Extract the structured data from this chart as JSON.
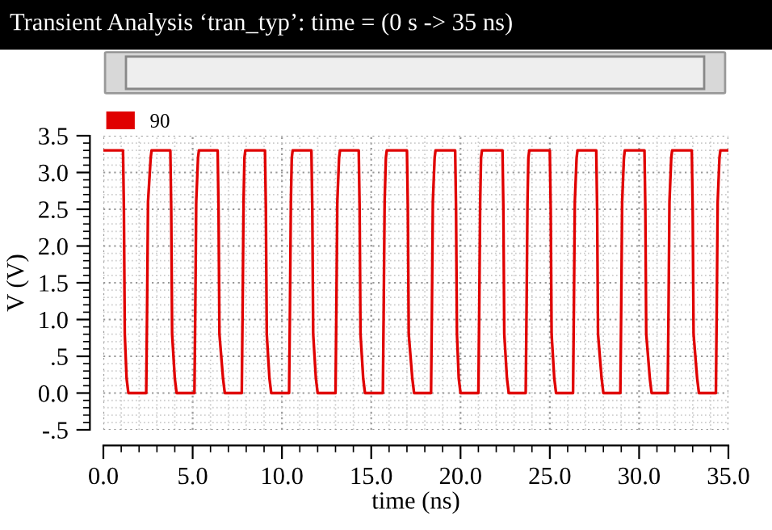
{
  "chart_data": {
    "type": "line",
    "title": "Transient Analysis ‘tran_typ’: time = (0 s -> 35 ns)",
    "xlabel": "time (ns)",
    "ylabel": "V (V)",
    "series": [
      {
        "name": "90",
        "color": "#e00000",
        "x": [
          0,
          1.1,
          1.15,
          1.2,
          1.3,
          1.4,
          2.4,
          2.45,
          2.5,
          2.65,
          2.7,
          3.75,
          3.8,
          3.85,
          4.0,
          4.1,
          5.1,
          5.15,
          5.2,
          5.3,
          5.35,
          6.4,
          6.45,
          6.5,
          6.7,
          6.8,
          7.75,
          7.8,
          7.85,
          7.9,
          7.95,
          9.05,
          9.1,
          9.15,
          9.3,
          9.4,
          10.4,
          10.45,
          10.5,
          10.55,
          10.6,
          11.65,
          11.7,
          11.75,
          11.9,
          12.0,
          13.0,
          13.05,
          13.1,
          13.2,
          13.25,
          14.3,
          14.35,
          14.4,
          14.55,
          14.65,
          15.65,
          15.7,
          15.75,
          15.82,
          15.87,
          17.0,
          17.05,
          17.1,
          17.3,
          17.4,
          18.35,
          18.4,
          18.45,
          18.55,
          18.6,
          19.7,
          19.75,
          19.8,
          19.9,
          20.0,
          21.0,
          21.05,
          21.1,
          21.15,
          21.2,
          22.35,
          22.4,
          22.45,
          22.6,
          22.7,
          23.65,
          23.7,
          23.75,
          23.8,
          23.85,
          25.0,
          25.05,
          25.1,
          25.25,
          25.35,
          26.3,
          26.35,
          26.4,
          26.5,
          26.55,
          27.6,
          27.65,
          27.7,
          27.9,
          28.0,
          28.95,
          29.0,
          29.05,
          29.15,
          29.2,
          30.3,
          30.35,
          30.4,
          30.6,
          30.7,
          31.6,
          31.65,
          31.7,
          31.8,
          31.85,
          32.95,
          33.0,
          33.05,
          33.25,
          33.35,
          34.3,
          34.35,
          34.4,
          34.5,
          34.55,
          35
        ],
        "values": [
          3.3,
          3.3,
          2.5,
          0.8,
          0.2,
          0,
          0,
          1.2,
          2.6,
          3.2,
          3.3,
          3.3,
          2.5,
          0.8,
          0.2,
          0,
          0,
          1.2,
          2.6,
          3.2,
          3.3,
          3.3,
          2.5,
          0.8,
          0.2,
          0,
          0,
          1.2,
          2.6,
          3.2,
          3.3,
          3.3,
          2.5,
          0.8,
          0.2,
          0,
          0,
          1.2,
          2.6,
          3.2,
          3.3,
          3.3,
          2.5,
          0.8,
          0.2,
          0,
          0,
          1.2,
          2.6,
          3.2,
          3.3,
          3.3,
          2.5,
          0.8,
          0.2,
          0,
          0,
          1.2,
          2.6,
          3.2,
          3.3,
          3.3,
          2.5,
          0.8,
          0.2,
          0,
          0,
          1.2,
          2.6,
          3.2,
          3.3,
          3.3,
          2.5,
          0.8,
          0.2,
          0,
          0,
          1.2,
          2.6,
          3.2,
          3.3,
          3.3,
          2.5,
          0.8,
          0.2,
          0,
          0,
          1.2,
          2.6,
          3.2,
          3.3,
          3.3,
          2.5,
          0.8,
          0.2,
          0,
          0,
          1.2,
          2.6,
          3.2,
          3.3,
          3.3,
          2.5,
          0.8,
          0.2,
          0,
          0,
          1.2,
          2.6,
          3.2,
          3.3,
          3.3,
          2.5,
          0.8,
          0.2,
          0,
          0,
          1.2,
          2.6,
          3.2,
          3.3,
          3.3,
          2.5,
          0.8,
          0.2,
          0,
          0,
          1.2,
          2.6,
          3.2,
          3.3,
          3.3
        ]
      }
    ],
    "xlim": [
      0,
      35
    ],
    "ylim": [
      -0.5,
      3.5
    ],
    "xticks": [
      {
        "value": 0,
        "label": "0.0"
      },
      {
        "value": 5,
        "label": "5.0"
      },
      {
        "value": 10,
        "label": "10.0"
      },
      {
        "value": 15,
        "label": "15.0"
      },
      {
        "value": 20,
        "label": "20.0"
      },
      {
        "value": 25,
        "label": "25.0"
      },
      {
        "value": 30,
        "label": "30.0"
      },
      {
        "value": 35,
        "label": "35.0"
      }
    ],
    "yticks": [
      {
        "value": -0.5,
        "label": "-.5"
      },
      {
        "value": 0,
        "label": "0.0"
      },
      {
        "value": 0.5,
        "label": ".5"
      },
      {
        "value": 1,
        "label": "1.0"
      },
      {
        "value": 1.5,
        "label": "1.5"
      },
      {
        "value": 2,
        "label": "2.0"
      },
      {
        "value": 2.5,
        "label": "2.5"
      },
      {
        "value": 3,
        "label": "3.0"
      },
      {
        "value": 3.5,
        "label": "3.5"
      }
    ],
    "grid": true,
    "legend": "top left",
    "marker": "none",
    "line_style": "solid"
  }
}
